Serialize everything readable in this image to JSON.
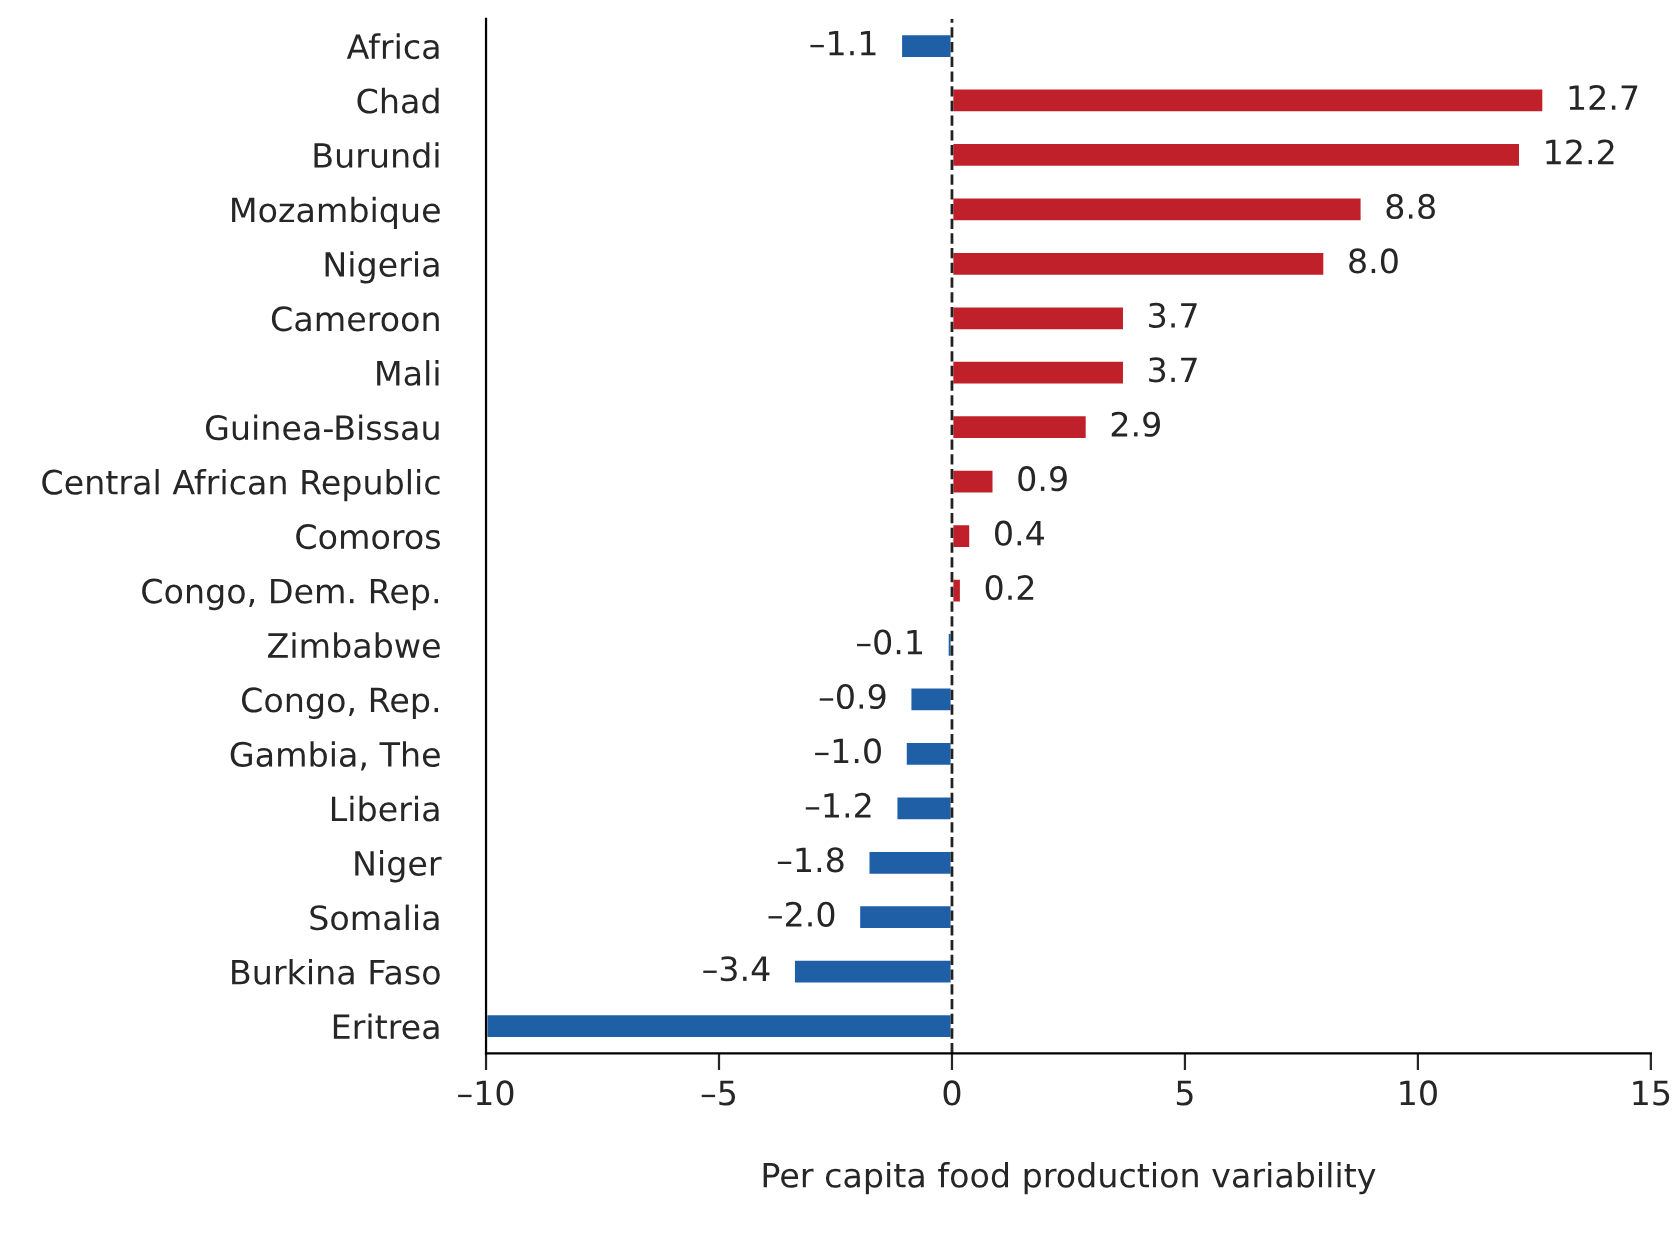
{
  "chart_data": {
    "type": "bar",
    "orientation": "horizontal",
    "xlabel": "Per capita food production variability",
    "categories": [
      "Africa",
      "Chad",
      "Burundi",
      "Mozambique",
      "Nigeria",
      "Cameroon",
      "Mali",
      "Guinea-Bissau",
      "Central African Republic",
      "Comoros",
      "Congo, Dem. Rep.",
      "Zimbabwe",
      "Congo, Rep.",
      "Gambia, The",
      "Liberia",
      "Niger",
      "Somalia",
      "Burkina Faso",
      "Eritrea"
    ],
    "values": [
      -1.1,
      12.7,
      12.2,
      8.8,
      8.0,
      3.7,
      3.7,
      2.9,
      0.9,
      0.4,
      0.2,
      -0.1,
      -0.9,
      -1.0,
      -1.2,
      -1.8,
      -2.0,
      -3.4,
      -10
    ],
    "value_labels": [
      "–1.1",
      "12.7",
      "12.2",
      "8.8",
      "8.0",
      "3.7",
      "3.7",
      "2.9",
      "0.9",
      "0.4",
      "0.2",
      "–0.1",
      "–0.9",
      "–1.0",
      "–1.2",
      "–1.8",
      "–2.0",
      "–3.4",
      null
    ],
    "colors": [
      "#1f5fa6",
      "#c0202a",
      "#c0202a",
      "#c0202a",
      "#c0202a",
      "#c0202a",
      "#c0202a",
      "#c0202a",
      "#c0202a",
      "#c0202a",
      "#c0202a",
      "#1f5fa6",
      "#1f5fa6",
      "#1f5fa6",
      "#1f5fa6",
      "#1f5fa6",
      "#1f5fa6",
      "#1f5fa6",
      "#1f5fa6"
    ],
    "xlim": [
      -10,
      15
    ],
    "xticks": [
      {
        "value": -10,
        "label": "–10"
      },
      {
        "value": -5,
        "label": "–5"
      },
      0,
      5,
      10,
      15
    ],
    "ref_lines": [
      {
        "axis": "x",
        "value": 0,
        "line_style": "dashed",
        "color": "#222222"
      }
    ],
    "grid": false,
    "legend": false
  }
}
